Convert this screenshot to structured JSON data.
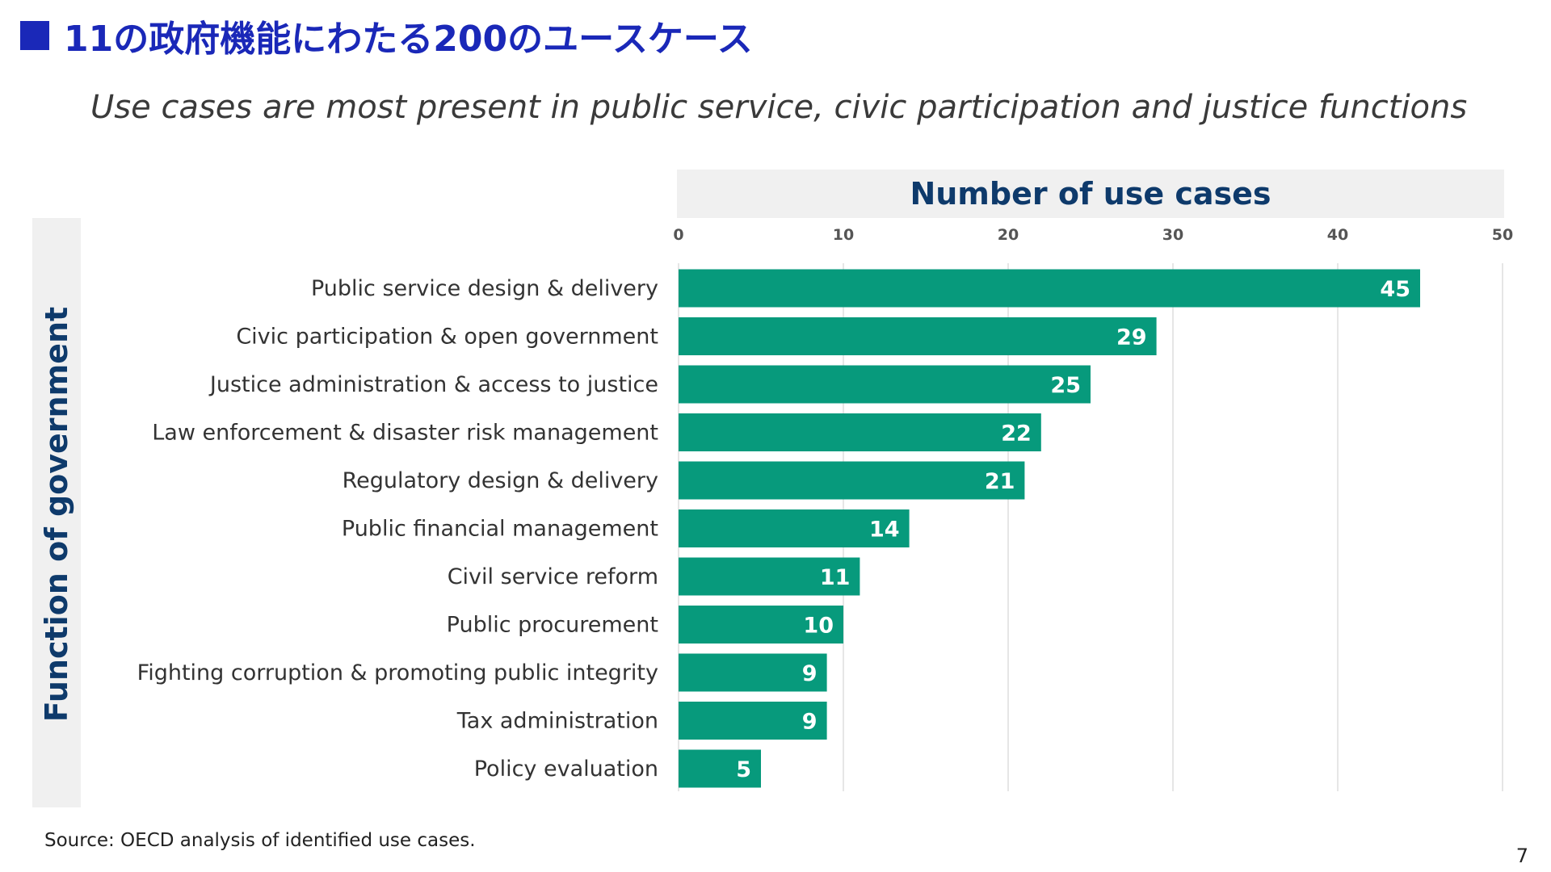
{
  "header": {
    "title": "11の政府機能にわたる200のユースケース",
    "subtitle": "Use cases are most present in public service, civic participation and justice functions"
  },
  "footer": {
    "source": "Source: OECD analysis of identified use cases.",
    "page_number": "7"
  },
  "colors": {
    "title": "#1a28b8",
    "bar": "#079a7c",
    "axis_title": "#0e3a6b",
    "header_band": "#f0f0f0",
    "grid": "#dddddd"
  },
  "chart_data": {
    "type": "bar",
    "orientation": "horizontal",
    "title": "Number of use cases",
    "xlabel": "Number of use cases",
    "ylabel": "Function of government",
    "xlim": [
      0,
      50
    ],
    "xticks": [
      0,
      10,
      20,
      30,
      40,
      50
    ],
    "grid": true,
    "categories": [
      "Public service design & delivery",
      "Civic participation & open government",
      "Justice administration & access to justice",
      "Law enforcement & disaster risk management",
      "Regulatory design & delivery",
      "Public financial management",
      "Civil service reform",
      "Public procurement",
      "Fighting corruption & promoting public integrity",
      "Tax administration",
      "Policy evaluation"
    ],
    "values": [
      45,
      29,
      25,
      22,
      21,
      14,
      11,
      10,
      9,
      9,
      5
    ]
  }
}
